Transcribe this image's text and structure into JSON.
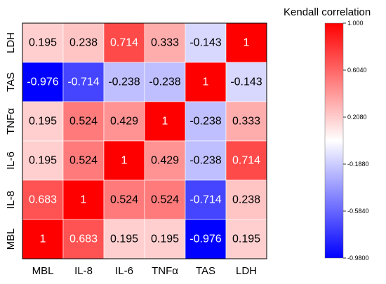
{
  "chart_data": {
    "type": "heatmap",
    "title": "",
    "xlabel": "",
    "ylabel": "",
    "x_categories": [
      "MBL",
      "IL-8",
      "IL-6",
      "TNFα",
      "TAS",
      "LDH"
    ],
    "y_categories_top_to_bottom": [
      "LDH",
      "TAS",
      "TNFα",
      "IL-6",
      "IL-8",
      "MBL"
    ],
    "values_top_to_bottom": [
      [
        0.195,
        0.238,
        0.714,
        0.333,
        -0.143,
        1
      ],
      [
        -0.976,
        -0.714,
        -0.238,
        -0.238,
        1,
        -0.143
      ],
      [
        0.195,
        0.524,
        0.429,
        1,
        -0.238,
        0.333
      ],
      [
        0.195,
        0.524,
        1,
        0.429,
        -0.238,
        0.714
      ],
      [
        0.683,
        1,
        0.524,
        0.524,
        -0.714,
        0.238
      ],
      [
        1,
        0.683,
        0.195,
        0.195,
        -0.976,
        0.195
      ]
    ],
    "cell_labels_top_to_bottom": [
      [
        "0.195",
        "0.238",
        "0.714",
        "0.333",
        "-0.143",
        "1"
      ],
      [
        "-0.976",
        "-0.714",
        "-0.238",
        "-0.238",
        "1",
        "-0.143"
      ],
      [
        "0.195",
        "0.524",
        "0.429",
        "1",
        "-0.238",
        "0.333"
      ],
      [
        "0.195",
        "0.524",
        "1",
        "0.429",
        "-0.238",
        "0.714"
      ],
      [
        "0.683",
        "1",
        "0.524",
        "0.524",
        "-0.714",
        "0.238"
      ],
      [
        "1",
        "0.683",
        "0.195",
        "0.195",
        "-0.976",
        "0.195"
      ]
    ],
    "legend": {
      "title": "Kendall correlation",
      "min": -0.98,
      "max": 1.0,
      "ticks": [
        "1.000",
        "0.6040",
        "0.2080",
        "-0.1880",
        "-0.5840",
        "-0.9800"
      ],
      "tick_values": [
        1.0,
        0.604,
        0.208,
        -0.188,
        -0.584,
        -0.98
      ],
      "placement": "right"
    },
    "colors": {
      "low": "#0000ff",
      "mid": "#ffffff",
      "high": "#ff0000"
    },
    "grid": true
  }
}
